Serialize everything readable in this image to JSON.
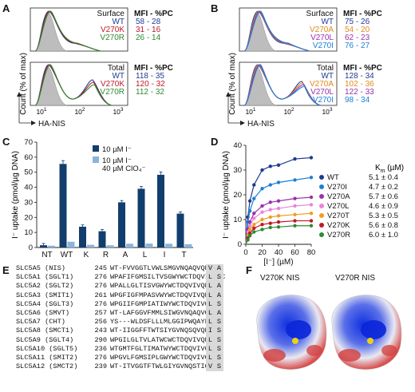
{
  "panels": {
    "A": {
      "letter": "A",
      "top": {
        "row_label": "Surface",
        "legend": [
          "WT",
          "V270K",
          "V270R"
        ],
        "mfi_header": "MFI - %PC",
        "mfi": [
          "58 - 28",
          "31 - 16",
          "26 - 14"
        ]
      },
      "bottom": {
        "row_label": "Total",
        "legend": [
          "WT",
          "V270K",
          "V270R"
        ],
        "mfi_header": "MFI - %PC",
        "mfi": [
          "118 - 35",
          "120 - 32",
          "112 - 32"
        ]
      },
      "ylabel": "Count (% of max)",
      "xlabel": "HA-NIS",
      "ticks": [
        "10",
        "10",
        "10"
      ],
      "exps": [
        "1",
        "2",
        "3"
      ]
    },
    "B": {
      "letter": "B",
      "top": {
        "row_label": "Surface",
        "legend": [
          "WT",
          "V270A",
          "V270L",
          "V270I"
        ],
        "mfi_header": "MFI - %PC",
        "mfi": [
          "75 - 26",
          "54 - 20",
          "62 - 23",
          "76 - 27"
        ]
      },
      "bottom": {
        "row_label": "Total",
        "legend": [
          "WT",
          "V270A",
          "V270L",
          "V270I"
        ],
        "mfi_header": "MFI - %PC",
        "mfi": [
          "128 - 34",
          "102 - 36",
          "122 - 33",
          "98 - 34"
        ]
      },
      "ylabel": "Count (% of max)",
      "xlabel": "HA-NIS",
      "ticks": [
        "10",
        "10",
        "10"
      ],
      "exps": [
        "1",
        "2",
        "3"
      ]
    },
    "C": {
      "letter": "C"
    },
    "D": {
      "letter": "D",
      "km_header": "K",
      "km_sub": "m",
      "km_unit": " (µM)"
    },
    "E": {
      "letter": "E"
    },
    "F": {
      "letter": "F",
      "left_label": "V270K NIS",
      "right_label": "V270R NIS"
    }
  },
  "colors": {
    "WT": "#1f3a93",
    "V270K": "#c0182a",
    "V270R": "#2e8b2e",
    "V270A": "#e08a1a",
    "V270L": "#9b2fae",
    "V270I": "#1c7fd6",
    "dark": "#123e6e",
    "light": "#8ab4dc",
    "V270T": "#f29c1f",
    "V270Lpink": "#e985d8"
  },
  "chart_data": [
    {
      "type": "bar",
      "title": "",
      "ylabel": "I⁻ uptake (pmol/µg DNA)",
      "ylim": [
        0,
        70
      ],
      "yticks": [
        "0",
        "10",
        "20",
        "30",
        "40",
        "50",
        "60",
        "70"
      ],
      "categories": [
        "NT",
        "WT",
        "K",
        "R",
        "A",
        "L",
        "I",
        "T"
      ],
      "series": [
        {
          "name": "10 µM I⁻",
          "values": [
            1.5,
            55.5,
            13.8,
            10.8,
            30,
            39,
            48.3,
            22.5
          ]
        },
        {
          "name": "10 µM I⁻ 40 µM ClO₄⁻",
          "values": [
            1.2,
            3.8,
            1.8,
            1.5,
            2.5,
            2.6,
            2.5,
            2.2
          ]
        }
      ],
      "legend_line2": "40 µM ClO₄⁻"
    },
    {
      "type": "line",
      "title": "",
      "xlabel": "[I⁻] (µM)",
      "ylabel": "I⁻ uptake (pmol/µg DNA)",
      "xlim": [
        0,
        80
      ],
      "ylim": [
        0,
        40
      ],
      "xticks": [
        "0",
        "20",
        "40",
        "60",
        "80"
      ],
      "yticks": [
        "0",
        "10",
        "20",
        "30",
        "40"
      ],
      "x": [
        2.5,
        5,
        10,
        20,
        30,
        40,
        60,
        80
      ],
      "series": [
        {
          "name": "WT",
          "km": "5.1 ± 0.4",
          "values": [
            11,
            17.5,
            24,
            30,
            31.5,
            32,
            34.5,
            35
          ]
        },
        {
          "name": "V270I",
          "km": "4.7 ± 0.2",
          "values": [
            9,
            13.5,
            18.5,
            22.5,
            24,
            25,
            26,
            27
          ]
        },
        {
          "name": "V270A",
          "km": "5.7 ± 0.6",
          "values": [
            6,
            9,
            12.5,
            15.5,
            17,
            17.5,
            18.5,
            19
          ]
        },
        {
          "name": "V270L",
          "km": "4.6 ± 0.9",
          "values": [
            5,
            7.5,
            10.5,
            13,
            14,
            14.5,
            15.5,
            16
          ]
        },
        {
          "name": "V270T",
          "km": "5.3 ± 0.5",
          "values": [
            3.5,
            6,
            8,
            10,
            11,
            11.5,
            12,
            12.5
          ]
        },
        {
          "name": "V270K",
          "km": "5.6 ± 0.8",
          "values": [
            2.5,
            4.5,
            6.5,
            8,
            8.5,
            9,
            9.5,
            9.5
          ]
        },
        {
          "name": "V270R",
          "km": "6.0 ± 1.0",
          "values": [
            1.8,
            3.5,
            5,
            6,
            6.8,
            7,
            7.5,
            7.5
          ]
        }
      ]
    }
  ],
  "alignment": [
    {
      "name": "SLC5A5 (NIS)",
      "start": "245",
      "seq": "WT-FVVGGTLVWLSMGVNQAQVQRY",
      "pos": "V",
      "next": "A"
    },
    {
      "name": "SLC5A1 (SGLT1)",
      "start": "276",
      "seq": "WPAFIFGMSILTVSGWYWCTDQVIVQRC",
      "pos": "L",
      "next": "S"
    },
    {
      "name": "SLC5A2 (SGLT2)",
      "start": "276",
      "seq": "WPALLGLTISVGWYWCTDQVIVQRC",
      "pos": "L",
      "next": "A"
    },
    {
      "name": "SLC5A3 (SMIT1)",
      "start": "261",
      "seq": "WPGFIGFMPASVWYWCTDQVIVQRC",
      "pos": "L",
      "next": "A"
    },
    {
      "name": "SLC5A4 (SGLT3)",
      "start": "276",
      "seq": "WPGIIFGMPIATIWYWCTDQVIVQRC",
      "pos": "L",
      "next": "S"
    },
    {
      "name": "SLC5A6 (SMVT)",
      "start": "257",
      "seq": "WT-LAFGGVFMMLSIWGVNQAQVQRY",
      "pos": "L",
      "next": "A"
    },
    {
      "name": "SLC5A7 (CHT)",
      "start": "256",
      "seq": "YS---WLDSFLLLMLGGIPWQAYFQRV",
      "pos": "L",
      "next": "S"
    },
    {
      "name": "SLC5A8 (SMCT1)",
      "start": "243",
      "seq": "WT-IIGGFFTWTSIYGVNQSQVQRY",
      "pos": "I",
      "next": "S"
    },
    {
      "name": "SLC5A9 (SGLT4)",
      "start": "290",
      "seq": "WPGILGLTVLATWCWCTDQVIVQRC",
      "pos": "L",
      "next": "S"
    },
    {
      "name": "SLC5A10 (SGLT5)",
      "start": "236",
      "seq": "WTGMTFGLTIMATWYWCTDQVIVQRC",
      "pos": "L",
      "next": "S"
    },
    {
      "name": "SLC5A11 (SMIT2)",
      "start": "276",
      "seq": "WPGVLFGMSIPLGWYWCTDQVIVQRC",
      "pos": "L",
      "next": "S"
    },
    {
      "name": "SLC5A12 (SMCT2)",
      "start": "239",
      "seq": "WT-ITVGGTFTWLGIYGVNQSTIQRC",
      "pos": "V",
      "next": "S"
    }
  ]
}
